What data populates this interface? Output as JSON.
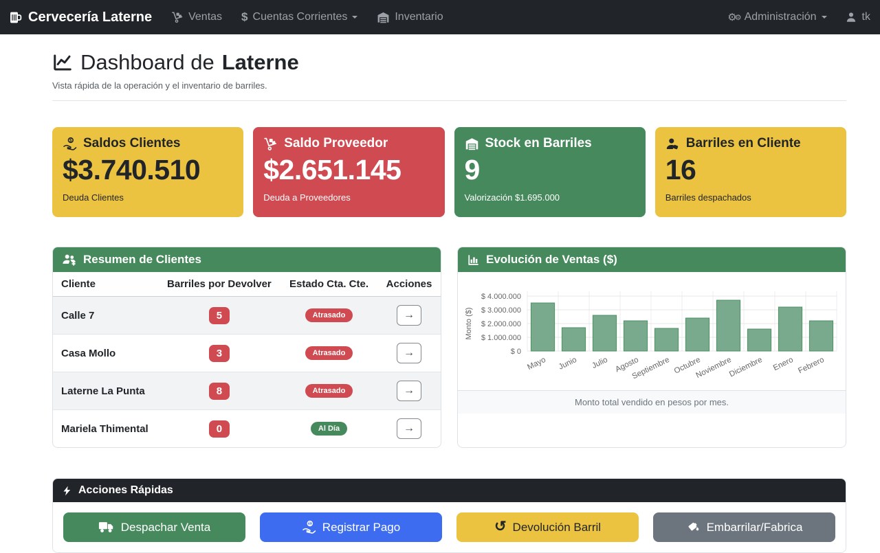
{
  "navbar": {
    "brand": "Cervecería Laterne",
    "items": [
      {
        "label": "Ventas",
        "icon": "sales-dolly-icon"
      },
      {
        "label": "Cuentas Corrientes",
        "icon": "dollar-icon",
        "has_dropdown": true
      },
      {
        "label": "Inventario",
        "icon": "warehouse-icon"
      }
    ],
    "admin": {
      "label": "Administración",
      "icon": "gears-icon",
      "has_dropdown": true
    },
    "user": {
      "label": "tk",
      "icon": "user-icon"
    }
  },
  "header": {
    "icon": "chart-line-icon",
    "title_prefix": "Dashboard de",
    "title_emphasis": "Laterne",
    "subtitle": "Vista rápida de la operación y el inventario de barriles."
  },
  "stat_cards": [
    {
      "icon": "hand-holding-dollar-icon",
      "title": "Saldos Clientes",
      "value": "$3.740.510",
      "caption": "Deuda Clientes",
      "bg": "#ecc340",
      "text": "#212529"
    },
    {
      "icon": "dolly-icon",
      "title": "Saldo Proveedor",
      "value": "$2.651.145",
      "caption": "Deuda a Proveedores",
      "bg": "#d04a51",
      "text": "#ffffff"
    },
    {
      "icon": "warehouse-icon",
      "title": "Stock en Barriles",
      "value": "9",
      "caption": "Valorización $1.695.000",
      "bg": "#46895c",
      "text": "#ffffff"
    },
    {
      "icon": "user-tag-icon",
      "title": "Barriles en Cliente",
      "value": "16",
      "caption": "Barriles despachados",
      "bg": "#ecc340",
      "text": "#212529"
    }
  ],
  "clients_panel": {
    "icon": "users-gear-icon",
    "title": "Resumen de Clientes",
    "columns": [
      "Cliente",
      "Barriles por Devolver",
      "Estado Cta. Cte.",
      "Acciones"
    ],
    "rows": [
      {
        "name": "Calle 7",
        "barrels": "5",
        "status": "Atrasado",
        "status_variant": "late"
      },
      {
        "name": "Casa Mollo",
        "barrels": "3",
        "status": "Atrasado",
        "status_variant": "late"
      },
      {
        "name": "Laterne La Punta",
        "barrels": "8",
        "status": "Atrasado",
        "status_variant": "late"
      },
      {
        "name": "Mariela Thimental",
        "barrels": "0",
        "status": "Al Día",
        "status_variant": "ok"
      }
    ],
    "action_icon": "arrow-right-icon",
    "action_glyph": "→"
  },
  "sales_panel": {
    "icon": "chart-column-icon",
    "title": "Evolución de Ventas ($)",
    "footer": "Monto total vendido en pesos por mes."
  },
  "chart_data": {
    "type": "bar",
    "title": "Evolución de Ventas ($)",
    "categories": [
      "Mayo",
      "Junio",
      "Julio",
      "Agosto",
      "Septiembre",
      "Octubre",
      "Noviembre",
      "Diciembre",
      "Enero",
      "Febrero"
    ],
    "values": [
      3500000,
      1700000,
      2600000,
      2200000,
      1650000,
      2400000,
      3700000,
      1600000,
      3200000,
      2200000
    ],
    "xlabel": "",
    "ylabel": "Monto ($)",
    "ylim": [
      0,
      4000000
    ],
    "ytick_step": 1000000,
    "ytick_prefix": "$ ",
    "grid": true,
    "legend": false,
    "bar_fill": "#7aaa8d",
    "bar_border": "#4d8f63"
  },
  "quick_actions": {
    "icon": "bolt-icon",
    "title": "Acciones Rápidas",
    "buttons": [
      {
        "label": "Despachar Venta",
        "icon": "truck-icon",
        "bg": "#46895c",
        "text": "#ffffff"
      },
      {
        "label": "Registrar Pago",
        "icon": "hand-holding-dollar-icon",
        "bg": "#3d6cf0",
        "text": "#ffffff"
      },
      {
        "label": "Devolución Barril",
        "icon": "rotate-left-icon",
        "bg": "#ecc340",
        "text": "#212529",
        "rotate_glyph": "↺"
      },
      {
        "label": "Embarrilar/Fabrica",
        "icon": "fill-drip-icon",
        "bg": "#6c757d",
        "text": "#ffffff"
      }
    ]
  },
  "colors": {
    "navbar_bg": "#212529",
    "accent_green": "#46895c",
    "accent_red": "#d04a51",
    "accent_yellow": "#ecc340",
    "accent_blue": "#3d6cf0",
    "accent_gray": "#6c757d"
  }
}
